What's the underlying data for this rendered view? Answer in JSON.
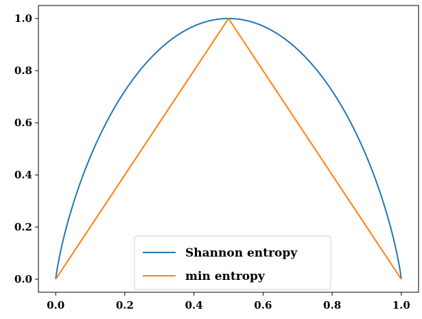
{
  "chart_data": {
    "type": "line",
    "title": "",
    "xlabel": "",
    "ylabel": "",
    "xlim": [
      -0.05,
      1.05
    ],
    "ylim": [
      -0.05,
      1.05
    ],
    "x_ticks": [
      0.0,
      0.2,
      0.4,
      0.6,
      0.8,
      1.0
    ],
    "x_tick_labels": [
      "0.0",
      "0.2",
      "0.4",
      "0.6",
      "0.8",
      "1.0"
    ],
    "y_ticks": [
      0.0,
      0.2,
      0.4,
      0.6,
      0.8,
      1.0
    ],
    "y_tick_labels": [
      "0.0",
      "0.2",
      "0.4",
      "0.6",
      "0.8",
      "1.0"
    ],
    "grid": false,
    "legend_position": "lower center",
    "series": [
      {
        "name": "Shannon entropy",
        "color": "#1f77b4",
        "x": [
          0.0,
          0.01,
          0.02,
          0.05,
          0.1,
          0.15,
          0.2,
          0.25,
          0.3,
          0.35,
          0.4,
          0.45,
          0.5,
          0.55,
          0.6,
          0.65,
          0.7,
          0.75,
          0.8,
          0.85,
          0.9,
          0.95,
          0.98,
          0.99,
          1.0
        ],
        "y": [
          0.0,
          0.081,
          0.141,
          0.286,
          0.469,
          0.61,
          0.722,
          0.811,
          0.881,
          0.934,
          0.971,
          0.993,
          1.0,
          0.993,
          0.971,
          0.934,
          0.881,
          0.811,
          0.722,
          0.61,
          0.469,
          0.286,
          0.141,
          0.081,
          0.0
        ]
      },
      {
        "name": "min entropy",
        "color": "#ff7f0e",
        "x": [
          0.0,
          0.5,
          1.0
        ],
        "y": [
          0.0,
          1.0,
          0.0
        ]
      }
    ]
  }
}
